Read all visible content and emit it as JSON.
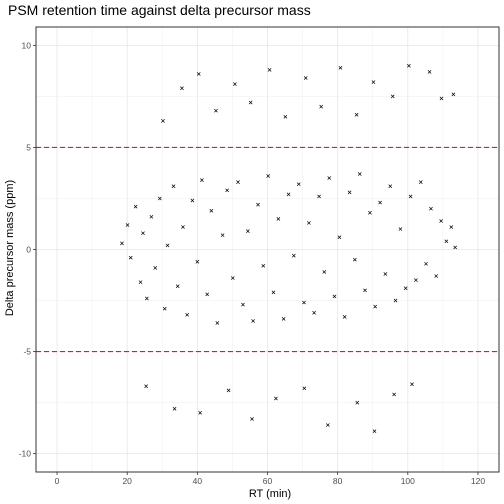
{
  "chart_data": {
    "type": "scatter",
    "title": "PSM retention time against delta precursor mass",
    "xlabel": "RT (min)",
    "ylabel": "Delta precursor mass (ppm)",
    "xlim": [
      -6,
      126
    ],
    "ylim": [
      -10.9,
      10.9
    ],
    "x_ticks": [
      0,
      20,
      40,
      60,
      80,
      100,
      120
    ],
    "y_ticks": [
      -10,
      -5,
      0,
      5,
      10
    ],
    "grid": true,
    "legend": "none",
    "marker": "x",
    "reference_lines": [
      {
        "axis": "y",
        "value": 5,
        "style": "dashed",
        "color": "#e41a1c"
      },
      {
        "axis": "y",
        "value": -5,
        "style": "dashed",
        "color": "#e41a1c"
      }
    ],
    "series": [
      {
        "points": [
          [
            18.5,
            0.3
          ],
          [
            20.1,
            1.2
          ],
          [
            21.0,
            -0.4
          ],
          [
            22.4,
            2.1
          ],
          [
            23.8,
            -1.6
          ],
          [
            24.5,
            0.8
          ],
          [
            25.6,
            -2.4
          ],
          [
            26.9,
            1.6
          ],
          [
            28.0,
            -0.9
          ],
          [
            29.3,
            2.5
          ],
          [
            30.7,
            -2.9
          ],
          [
            31.5,
            0.2
          ],
          [
            33.2,
            3.1
          ],
          [
            34.4,
            -1.8
          ],
          [
            35.9,
            1.1
          ],
          [
            37.1,
            -3.2
          ],
          [
            38.6,
            2.4
          ],
          [
            40.0,
            -0.6
          ],
          [
            41.3,
            3.4
          ],
          [
            42.8,
            -2.2
          ],
          [
            44.0,
            1.9
          ],
          [
            45.7,
            -3.6
          ],
          [
            47.2,
            0.7
          ],
          [
            48.5,
            2.9
          ],
          [
            50.1,
            -1.4
          ],
          [
            51.6,
            3.3
          ],
          [
            53.0,
            -2.7
          ],
          [
            54.4,
            0.9
          ],
          [
            55.9,
            -3.5
          ],
          [
            57.3,
            2.2
          ],
          [
            58.8,
            -0.8
          ],
          [
            60.2,
            3.6
          ],
          [
            61.7,
            -2.1
          ],
          [
            63.1,
            1.5
          ],
          [
            64.6,
            -3.4
          ],
          [
            66.0,
            2.7
          ],
          [
            67.5,
            -0.3
          ],
          [
            68.9,
            3.2
          ],
          [
            70.4,
            -2.6
          ],
          [
            71.8,
            1.3
          ],
          [
            73.3,
            -3.1
          ],
          [
            74.7,
            2.6
          ],
          [
            76.2,
            -1.1
          ],
          [
            77.6,
            3.5
          ],
          [
            79.1,
            -2.3
          ],
          [
            80.5,
            0.6
          ],
          [
            82.0,
            -3.3
          ],
          [
            83.4,
            2.8
          ],
          [
            84.9,
            -0.5
          ],
          [
            86.3,
            3.7
          ],
          [
            87.8,
            -2.0
          ],
          [
            89.2,
            1.8
          ],
          [
            90.7,
            -2.8
          ],
          [
            92.1,
            2.3
          ],
          [
            93.6,
            -1.2
          ],
          [
            95.0,
            3.1
          ],
          [
            96.5,
            -2.5
          ],
          [
            97.9,
            1.0
          ],
          [
            99.4,
            -1.9
          ],
          [
            100.8,
            2.6
          ],
          [
            102.3,
            -1.5
          ],
          [
            103.7,
            3.3
          ],
          [
            105.2,
            -0.7
          ],
          [
            106.6,
            2.0
          ],
          [
            108.1,
            -1.3
          ],
          [
            109.5,
            1.4
          ],
          [
            111.0,
            0.4
          ],
          [
            112.4,
            1.1
          ],
          [
            113.5,
            0.1
          ],
          [
            30.2,
            6.3
          ],
          [
            35.6,
            7.9
          ],
          [
            40.4,
            8.6
          ],
          [
            45.3,
            6.8
          ],
          [
            50.7,
            8.1
          ],
          [
            55.2,
            7.2
          ],
          [
            60.6,
            8.8
          ],
          [
            65.1,
            6.5
          ],
          [
            70.9,
            8.4
          ],
          [
            75.3,
            7.0
          ],
          [
            80.8,
            8.9
          ],
          [
            85.4,
            6.6
          ],
          [
            90.2,
            8.2
          ],
          [
            95.7,
            7.5
          ],
          [
            100.3,
            9.0
          ],
          [
            106.2,
            8.7
          ],
          [
            109.6,
            7.4
          ],
          [
            113.0,
            7.6
          ],
          [
            25.4,
            -6.7
          ],
          [
            33.5,
            -7.8
          ],
          [
            40.8,
            -8.0
          ],
          [
            48.9,
            -6.9
          ],
          [
            55.6,
            -8.3
          ],
          [
            62.4,
            -7.3
          ],
          [
            70.5,
            -6.8
          ],
          [
            77.2,
            -8.6
          ],
          [
            85.6,
            -7.5
          ],
          [
            90.5,
            -8.9
          ],
          [
            96.1,
            -7.1
          ],
          [
            101.2,
            -6.6
          ]
        ]
      }
    ]
  }
}
